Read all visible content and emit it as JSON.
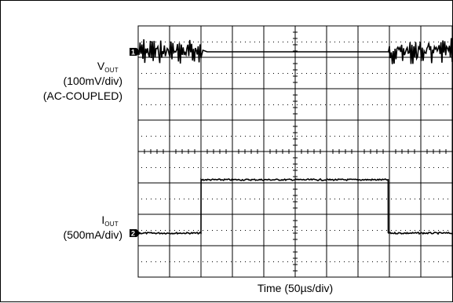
{
  "chart_data": {
    "type": "line",
    "xlabel": "Time (50µs/div)",
    "x_divisions": 10,
    "y_divisions": 8,
    "x_unit": "µs",
    "x_per_div": 50,
    "grid": true,
    "channels": [
      {
        "id": "1",
        "name": "VOUT",
        "name_main": "V",
        "name_sub": "OUT",
        "scale_label": "(100mV/div)",
        "coupling_label": "(AC-COUPLED)",
        "unit": "mV",
        "per_div": 100,
        "x": [
          0,
          100,
          100.5,
          103,
          110,
          400,
          400.1,
          500
        ],
        "y": [
          0,
          0,
          -15,
          5,
          0,
          0,
          0,
          0
        ],
        "ripple_mVpp": [
          [
            0,
            100,
            40
          ],
          [
            400,
            500,
            40
          ]
        ]
      },
      {
        "id": "2",
        "name": "IOUT",
        "name_main": "I",
        "name_sub": "OUT",
        "scale_label": "(500mA/div)",
        "unit": "mA",
        "per_div": 500,
        "x": [
          0,
          100,
          100.1,
          398,
          398.1,
          500
        ],
        "y": [
          0,
          0,
          850,
          850,
          0,
          0
        ],
        "noise_mApp": 40
      }
    ]
  }
}
